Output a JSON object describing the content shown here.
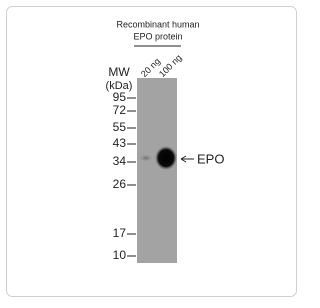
{
  "header": {
    "line1": "Recombinant human",
    "line2": "EPO protein"
  },
  "lanes": [
    "20 ng",
    "100 ng"
  ],
  "mw": {
    "title": "MW",
    "unit": "(kDa)"
  },
  "markers": [
    "95",
    "72",
    "55",
    "43",
    "34",
    "26",
    "17",
    "10"
  ],
  "band_label": "EPO"
}
